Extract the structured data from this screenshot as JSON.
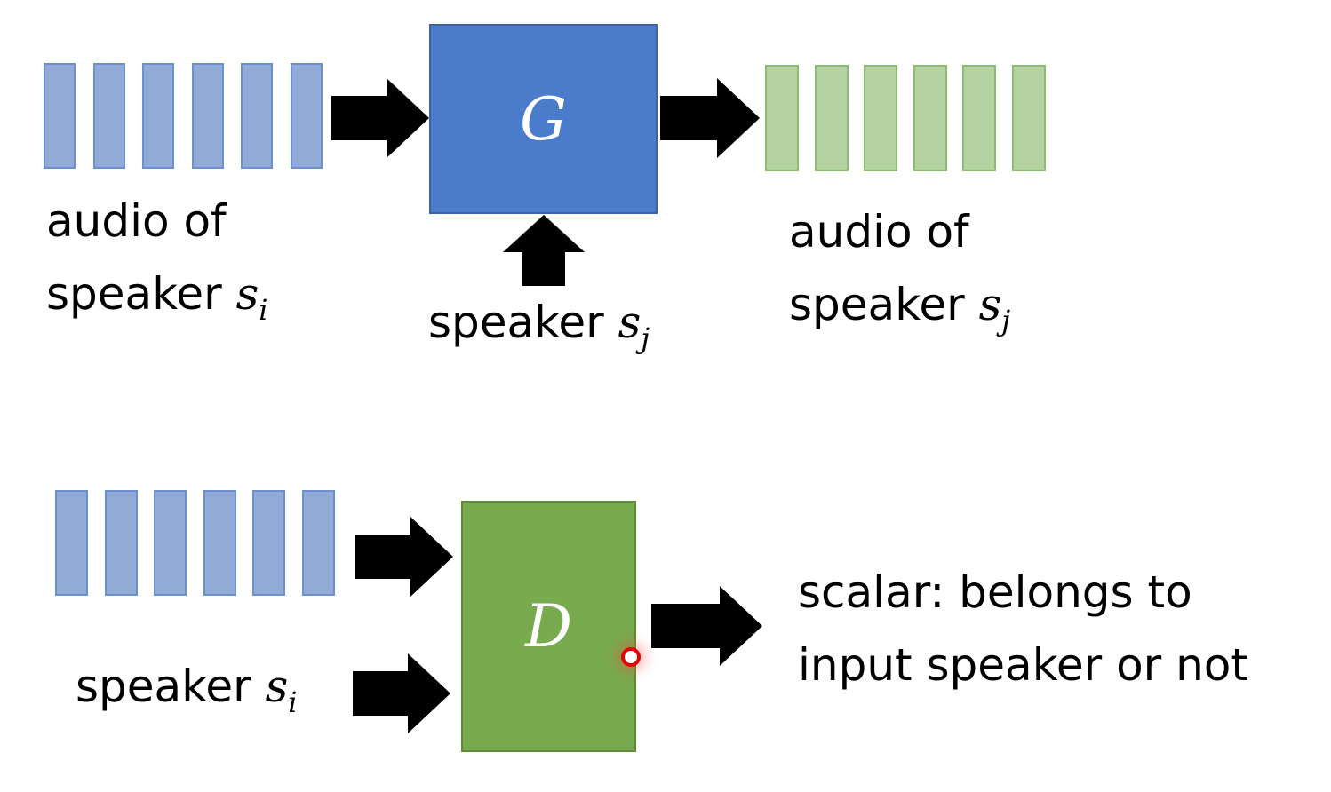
{
  "generator": {
    "box_label": "G",
    "input_label": {
      "line1": "audio of",
      "line2": "speaker",
      "var": "s",
      "sub": "i"
    },
    "condition_label": {
      "text": "speaker",
      "var": "s",
      "sub": "j"
    },
    "output_label": {
      "line1": "audio of",
      "line2": "speaker",
      "var": "s",
      "sub": "j"
    }
  },
  "discriminator": {
    "box_label": "D",
    "condition_label": {
      "text": "speaker",
      "var": "s",
      "sub": "i"
    },
    "output_label": {
      "line1": "scalar: belongs to",
      "line2": "input speaker or not"
    }
  },
  "colors": {
    "input_bars": "#92aad8",
    "output_bars": "#b5d3a2",
    "generator_box": "#4a7ccb",
    "discriminator_box": "#78ab4e",
    "arrows": "#000000",
    "pointer": "#e60000"
  }
}
